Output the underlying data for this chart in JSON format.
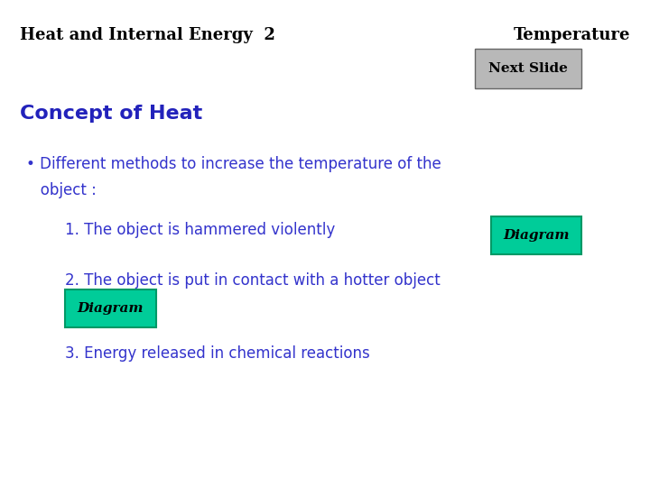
{
  "background_color": "#ffffff",
  "title_left": "Heat and Internal Energy  2",
  "title_right": "Temperature",
  "title_color": "#000000",
  "title_fontsize": 13,
  "next_slide_label": "Next Slide",
  "next_slide_box_color": "#b8b8b8",
  "next_slide_fontsize": 11,
  "section_title": "Concept of Heat",
  "section_title_color": "#2222bb",
  "section_title_fontsize": 16,
  "bullet_line1": "• Different methods to increase the temperature of the",
  "bullet_line2": "   object :",
  "bullet_color": "#3333cc",
  "bullet_fontsize": 12,
  "item1": "1. The object is hammered violently",
  "item2": "2. The object is put in contact with a hotter object",
  "item3": "3. Energy released in chemical reactions",
  "item_color": "#3333cc",
  "item_fontsize": 12,
  "diagram_label": "Diagram",
  "diagram_bg": "#00cc99",
  "diagram_edge": "#009966",
  "diagram_text_color": "#000000",
  "diagram_fontsize": 11
}
